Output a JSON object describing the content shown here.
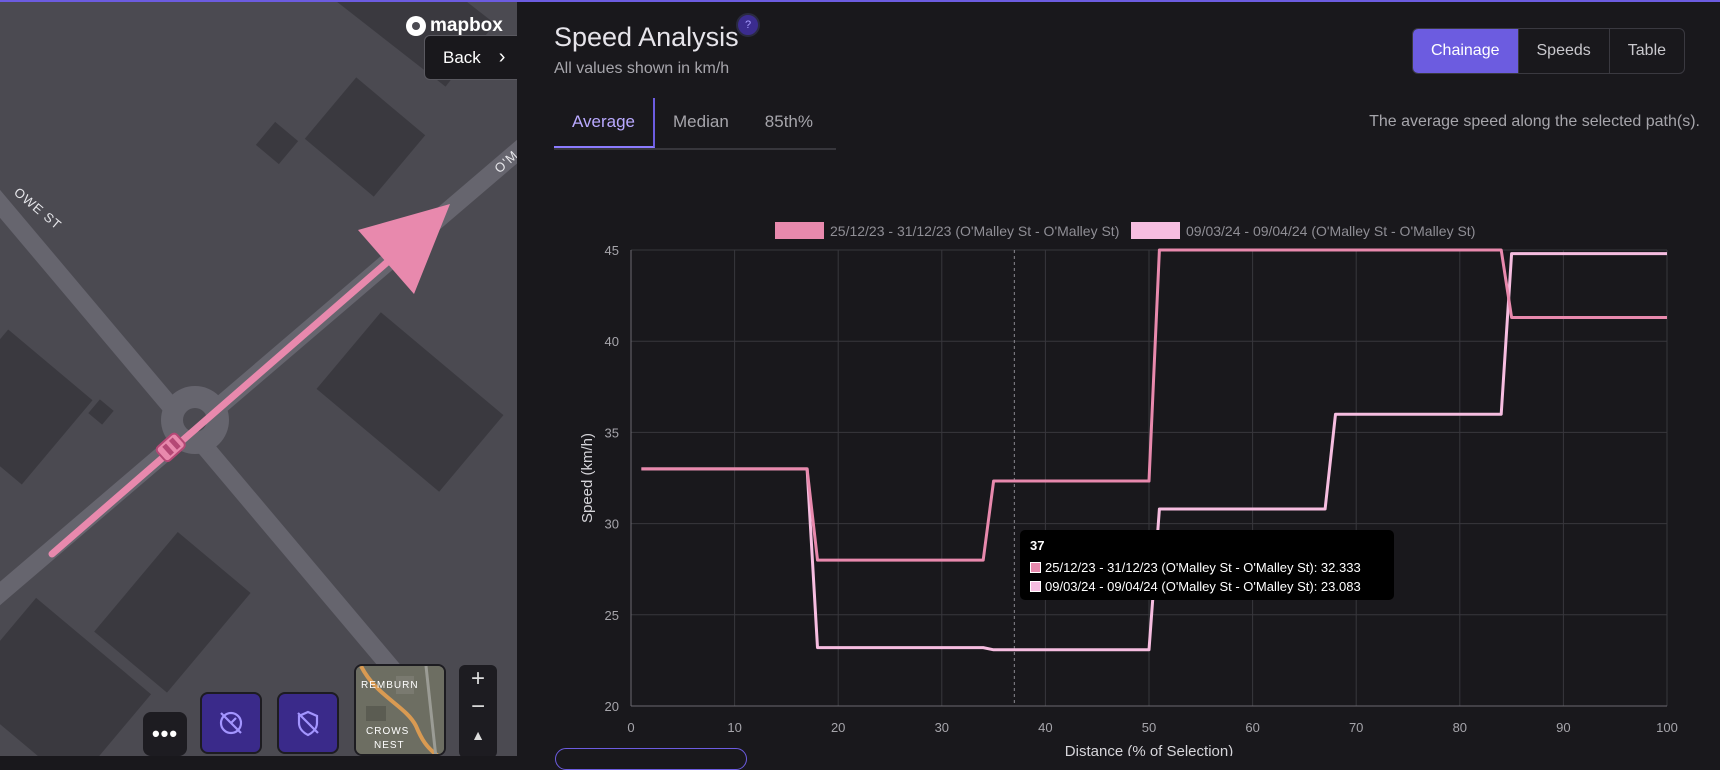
{
  "map": {
    "logo_text": "mapbox",
    "back_label": "Back",
    "street_labels": [
      "OWE ST",
      "O'M"
    ],
    "more_label": "•••",
    "satellite_labels": [
      "REMBURN",
      "CROWS",
      "NEST"
    ],
    "zoom_in": "+",
    "zoom_out": "−",
    "compass": "▲"
  },
  "panel": {
    "title": "Speed Analysis",
    "help": "?",
    "subtitle": "All values shown in km/h",
    "view_toggle": [
      "Chainage",
      "Speeds",
      "Table"
    ],
    "active_view": "Chainage",
    "tabs": [
      "Average",
      "Median",
      "85th%"
    ],
    "active_tab": "Average",
    "description": "The average speed along the selected path(s)."
  },
  "colors": {
    "accent": "#6c5ce0",
    "series1": "#e889ad",
    "series2": "#f6bde0"
  },
  "chart_data": {
    "type": "line",
    "xlabel": "Distance (% of Selection)",
    "ylabel": "Speed (km/h)",
    "xlim": [
      0,
      100
    ],
    "ylim": [
      20,
      45
    ],
    "x_ticks": [
      "0",
      "10",
      "20",
      "30",
      "40",
      "50",
      "60",
      "70",
      "80",
      "90",
      "100"
    ],
    "y_ticks": [
      "20",
      "25",
      "30",
      "35",
      "40",
      "45"
    ],
    "grid": true,
    "legend_position": "top",
    "series": [
      {
        "name": "25/12/23 - 31/12/23 (O'Malley St - O'Malley St)",
        "color": "#e889ad",
        "points": [
          [
            1,
            33
          ],
          [
            17,
            33
          ],
          [
            18,
            28
          ],
          [
            34,
            28
          ],
          [
            35,
            32.333
          ],
          [
            50,
            32.333
          ],
          [
            51,
            45
          ],
          [
            84,
            45
          ],
          [
            85,
            41.3
          ],
          [
            100,
            41.3
          ]
        ]
      },
      {
        "name": "09/03/24 - 09/04/24 (O'Malley St - O'Malley St)",
        "color": "#f6bde0",
        "points": [
          [
            1,
            33
          ],
          [
            17,
            33
          ],
          [
            18,
            23.2
          ],
          [
            34,
            23.2
          ],
          [
            35,
            23.083
          ],
          [
            50,
            23.083
          ],
          [
            51,
            30.8
          ],
          [
            67,
            30.8
          ],
          [
            68,
            36
          ],
          [
            84,
            36
          ],
          [
            85,
            44.8
          ],
          [
            100,
            44.8
          ]
        ]
      }
    ],
    "crosshair_x": 37,
    "tooltip": {
      "title": "37",
      "rows": [
        "25/12/23 - 31/12/23 (O'Malley St - O'Malley St): 32.333",
        "09/03/24 - 09/04/24 (O'Malley St - O'Malley St): 23.083"
      ]
    }
  }
}
